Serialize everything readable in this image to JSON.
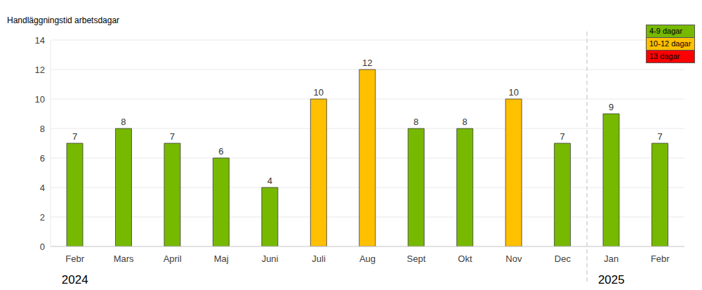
{
  "chart_data": {
    "type": "bar",
    "ylabel": "Handläggningstid arbetsdagar",
    "categories": [
      "Febr",
      "Mars",
      "April",
      "Maj",
      "Juni",
      "Juli",
      "Aug",
      "Sept",
      "Okt",
      "Nov",
      "Dec",
      "Jan",
      "Febr"
    ],
    "values": [
      7,
      8,
      7,
      6,
      4,
      10,
      12,
      8,
      8,
      10,
      7,
      9,
      7
    ],
    "colors": [
      "#76b900",
      "#76b900",
      "#76b900",
      "#76b900",
      "#76b900",
      "#ffc000",
      "#ffc000",
      "#76b900",
      "#76b900",
      "#ffc000",
      "#76b900",
      "#76b900",
      "#76b900"
    ],
    "ylim": [
      0,
      14
    ],
    "yticks": [
      0,
      2,
      4,
      6,
      8,
      10,
      12,
      14
    ],
    "grid": true,
    "data_labels": true,
    "legend": "upper right",
    "legend_entries": [
      {
        "label": "4-9 dagar",
        "color": "#76b900"
      },
      {
        "label": "10-12 dagar",
        "color": "#ffc000"
      },
      {
        "label": "13 dagar",
        "color": "#ff0000"
      }
    ],
    "groups": [
      {
        "label": "2024",
        "start": 0,
        "end": 10
      },
      {
        "label": "2025",
        "start": 11,
        "end": 12
      }
    ]
  }
}
